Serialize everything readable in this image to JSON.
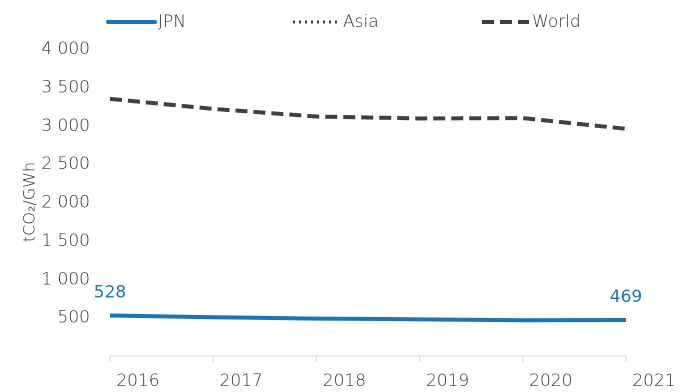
{
  "chart_data": {
    "type": "line",
    "y_label": "tCO₂/GWh",
    "x": [
      2016,
      2017,
      2018,
      2019,
      2020,
      2021
    ],
    "xlim": [
      2016,
      2021
    ],
    "series": [
      {
        "name": "JPN",
        "color": "#1a75b8",
        "style": "solid",
        "values": [
          528,
          505,
          487,
          478,
          465,
          469
        ],
        "labeled": [
          0,
          5
        ]
      },
      {
        "name": "Asia",
        "color": "#404040",
        "style": "dotted",
        "values": [
          null,
          null,
          null,
          null,
          null,
          null
        ]
      },
      {
        "name": "World",
        "color": "#404040",
        "style": "dashed",
        "values": [
          3350,
          3220,
          3120,
          3095,
          3100,
          2960
        ]
      }
    ],
    "ylim": [
      0,
      4000
    ],
    "yticks": [
      500,
      {
        "value": 1000,
        "label": "1 000"
      },
      {
        "value": 1500,
        "label": "1 500"
      },
      {
        "value": 2000,
        "label": "2 000"
      },
      {
        "value": 2500,
        "label": "2 500"
      },
      {
        "value": 3000,
        "label": "3 000"
      },
      {
        "value": 3500,
        "label": "3 500"
      },
      {
        "value": 4000,
        "label": "4 000"
      }
    ],
    "grid": false
  }
}
